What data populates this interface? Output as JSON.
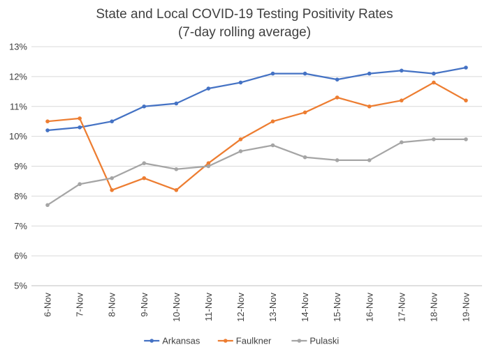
{
  "chart_data": {
    "type": "line",
    "title": "State and Local COVID-19 Testing Positivity Rates",
    "subtitle": "(7-day rolling average)",
    "xlabel": "",
    "ylabel": "",
    "categories": [
      "6-Nov",
      "7-Nov",
      "8-Nov",
      "9-Nov",
      "10-Nov",
      "11-Nov",
      "12-Nov",
      "13-Nov",
      "14-Nov",
      "15-Nov",
      "16-Nov",
      "17-Nov",
      "18-Nov",
      "19-Nov"
    ],
    "ylim": [
      5,
      13
    ],
    "y_ticks": [
      5,
      6,
      7,
      8,
      9,
      10,
      11,
      12,
      13
    ],
    "y_tick_labels": [
      "5%",
      "6%",
      "7%",
      "8%",
      "9%",
      "10%",
      "11%",
      "12%",
      "13%"
    ],
    "grid": true,
    "legend_position": "bottom",
    "series": [
      {
        "name": "Arkansas",
        "color": "#4472C4",
        "values": [
          10.2,
          10.3,
          10.5,
          11.0,
          11.1,
          11.6,
          11.8,
          12.1,
          12.1,
          11.9,
          12.1,
          12.2,
          12.1,
          12.3
        ]
      },
      {
        "name": "Faulkner",
        "color": "#ED7D31",
        "values": [
          10.5,
          10.6,
          8.2,
          8.6,
          8.2,
          9.1,
          9.9,
          10.5,
          10.8,
          11.3,
          11.0,
          11.2,
          11.8,
          11.2
        ]
      },
      {
        "name": "Pulaski",
        "color": "#A5A5A5",
        "values": [
          7.7,
          8.4,
          8.6,
          9.1,
          8.9,
          9.0,
          9.5,
          9.7,
          9.3,
          9.2,
          9.2,
          9.8,
          9.9,
          9.9
        ]
      }
    ]
  }
}
